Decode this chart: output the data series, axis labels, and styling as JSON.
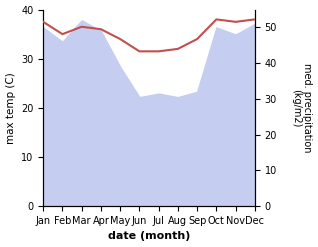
{
  "months": [
    "Jan",
    "Feb",
    "Mar",
    "Apr",
    "May",
    "Jun",
    "Jul",
    "Aug",
    "Sep",
    "Oct",
    "Nov",
    "Dec"
  ],
  "temp": [
    37.5,
    35.0,
    36.5,
    36.0,
    34.0,
    31.5,
    31.5,
    32.0,
    34.0,
    38.0,
    37.5,
    38.0
  ],
  "precip": [
    50.0,
    46.0,
    52.0,
    49.0,
    39.0,
    30.5,
    31.5,
    30.5,
    32.0,
    50.0,
    48.0,
    51.0
  ],
  "temp_color": "#c0504d",
  "precip_fill_color": "#c5cef0",
  "xlabel": "date (month)",
  "ylabel_left": "max temp (C)",
  "ylabel_right": "med. precipitation\n(kg/m2)",
  "ylim_left": [
    0,
    40
  ],
  "ylim_right": [
    0,
    55
  ],
  "yticks_left": [
    0,
    10,
    20,
    30,
    40
  ],
  "yticks_right": [
    0,
    10,
    20,
    30,
    40,
    50
  ],
  "background_color": "#ffffff"
}
